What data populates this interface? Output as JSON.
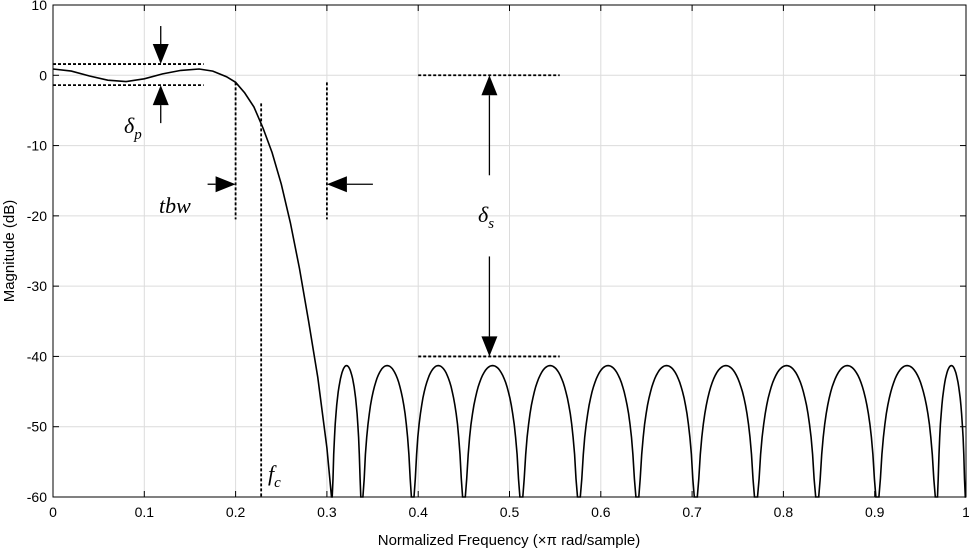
{
  "chart_data": {
    "type": "line",
    "title": "",
    "xlabel": "Normalized Frequency  (×π rad/sample)",
    "ylabel": "Magnitude (dB)",
    "xlim": [
      0,
      1
    ],
    "ylim": [
      -60,
      10
    ],
    "xticks": [
      0,
      0.1,
      0.2,
      0.3,
      0.4,
      0.5,
      0.6,
      0.7,
      0.8,
      0.9,
      1
    ],
    "xtick_labels": [
      "0",
      "0.1",
      "0.2",
      "0.3",
      "0.4",
      "0.5",
      "0.6",
      "0.7",
      "0.8",
      "0.9",
      "1"
    ],
    "yticks": [
      10,
      0,
      -10,
      -20,
      -30,
      -40,
      -50,
      -60
    ],
    "ytick_labels": [
      "10",
      "0",
      "-10",
      "-20",
      "-30",
      "-40",
      "-50",
      "-60"
    ],
    "grid": true,
    "series": [
      {
        "color": "#000000",
        "passband": {
          "x": [
            0,
            0.02,
            0.04,
            0.06,
            0.08,
            0.1,
            0.12,
            0.14,
            0.16,
            0.175,
            0.19,
            0.2,
            0.21,
            0.22,
            0.23,
            0.24,
            0.25,
            0.26,
            0.27,
            0.28,
            0.29,
            0.3,
            0.305
          ],
          "y": [
            0.9,
            0.6,
            -0.1,
            -0.7,
            -0.9,
            -0.5,
            0.2,
            0.7,
            0.9,
            0.6,
            -0.2,
            -1.0,
            -2.5,
            -4.5,
            -7.5,
            -11,
            -15.5,
            -21,
            -27.5,
            -35,
            -43,
            -53,
            -60
          ]
        },
        "stopband_peak_db": -41.3,
        "stopband_nulls": [
          0.305,
          0.338,
          0.394,
          0.45,
          0.513,
          0.576,
          0.64,
          0.704,
          0.77,
          0.837,
          0.903,
          0.968,
          1.0
        ]
      }
    ],
    "annotations": {
      "passband_ripple": {
        "label": "δ",
        "sub": "p",
        "upper_db": 1.6,
        "lower_db": -1.4,
        "x_range": [
          0,
          0.165
        ],
        "arrow_x": 0.118
      },
      "transition_band": {
        "label": "tbw",
        "left_x": 0.2,
        "right_x": 0.3
      },
      "cutoff": {
        "label": "f",
        "sub": "c",
        "x": 0.228
      },
      "stopband_attenuation": {
        "label": "δ",
        "sub": "s",
        "upper_db": 0,
        "lower_db": -40,
        "x_range": [
          0.4,
          0.555
        ],
        "arrow_x": 0.478
      }
    }
  }
}
